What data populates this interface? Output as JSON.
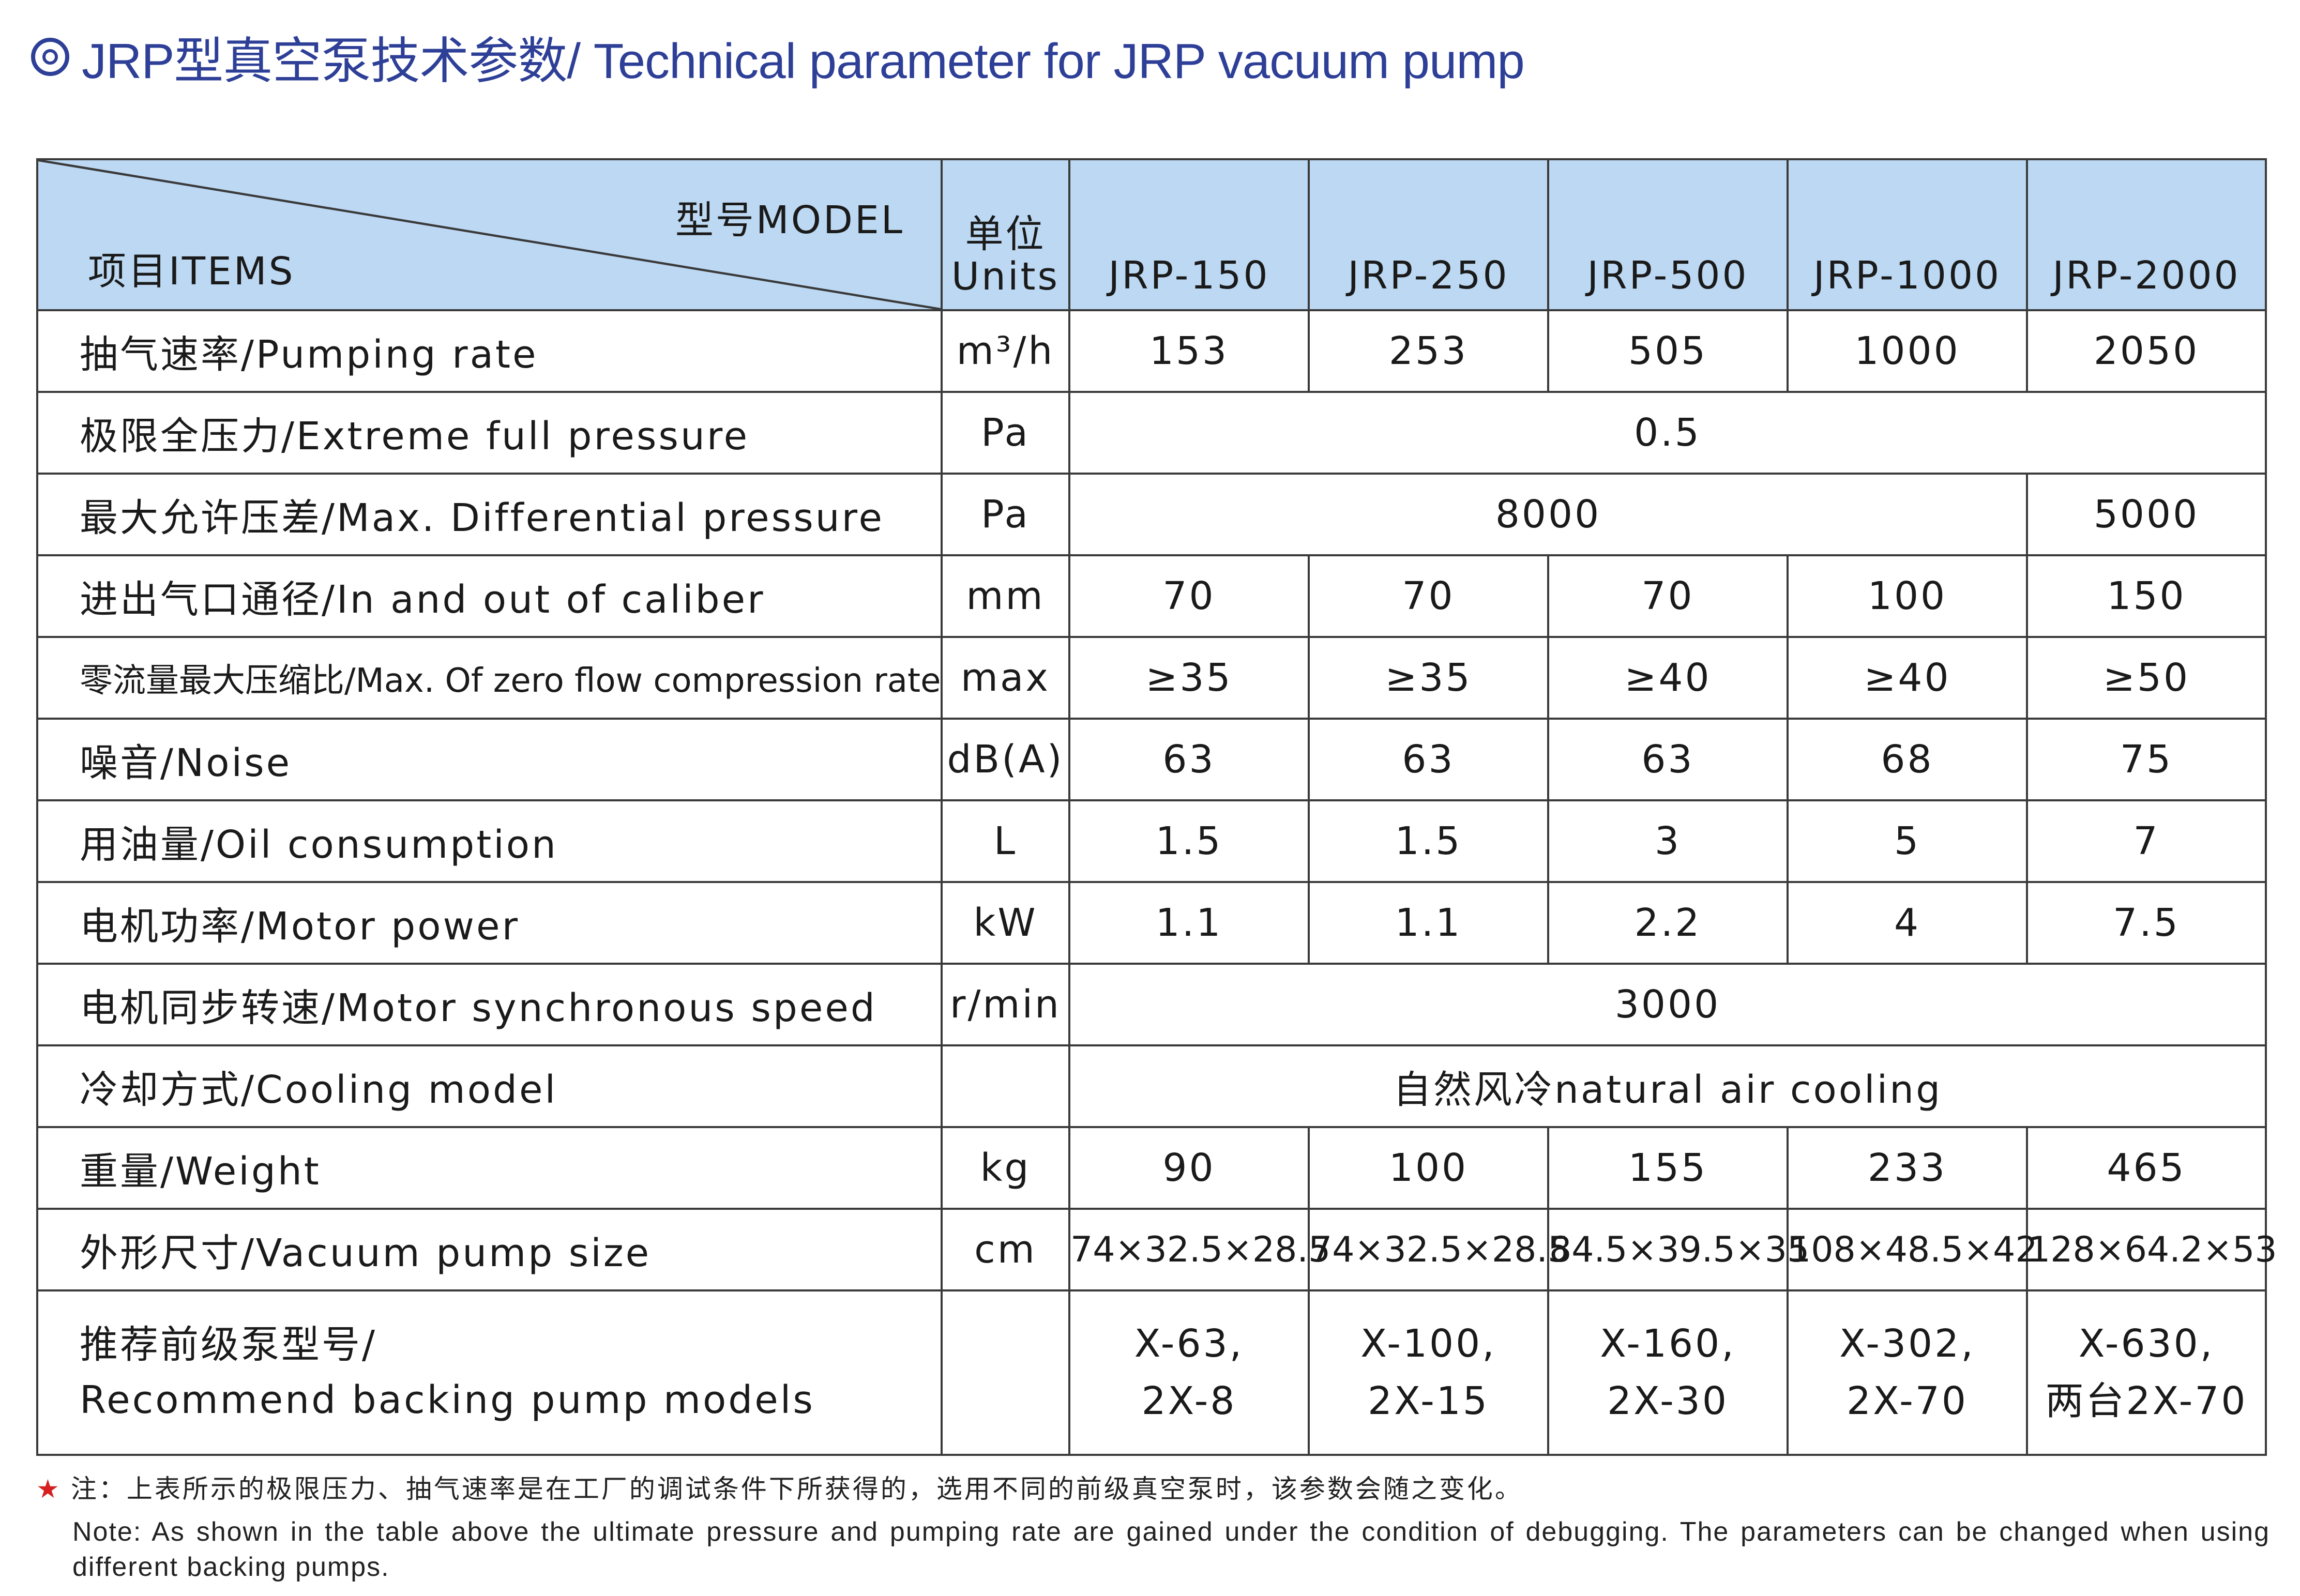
{
  "title": "JRP型真空泵技术参数/ Technical parameter for JRP vacuum pump",
  "header": {
    "model_label": "型号MODEL",
    "items_label": "项目ITEMS",
    "units_line1": "单位",
    "units_line2": "Units",
    "models": [
      "JRP-150",
      "JRP-250",
      "JRP-500",
      "JRP-1000",
      "JRP-2000"
    ]
  },
  "rows": {
    "pumping_rate": {
      "item": "抽气速率/Pumping rate",
      "unit": "m³/h",
      "values": [
        "153",
        "253",
        "505",
        "1000",
        "2050"
      ]
    },
    "extreme_pressure": {
      "item": "极限全压力/Extreme full pressure",
      "unit": "Pa",
      "value": "0.5"
    },
    "max_diff": {
      "item": "最大允许压差/Max. Differential pressure",
      "unit": "Pa",
      "value_1_4": "8000",
      "value_5": "5000"
    },
    "caliber": {
      "item": "进出气口通径/In and out of caliber",
      "unit": "mm",
      "values": [
        "70",
        "70",
        "70",
        "100",
        "150"
      ]
    },
    "compression": {
      "item": "零流量最大压缩比/Max. Of zero flow compression rate",
      "unit": "max",
      "values": [
        "≥35",
        "≥35",
        "≥40",
        "≥40",
        "≥50"
      ]
    },
    "noise": {
      "item": "噪音/Noise",
      "unit": "dB(A)",
      "values": [
        "63",
        "63",
        "63",
        "68",
        "75"
      ]
    },
    "oil": {
      "item": "用油量/Oil consumption",
      "unit": "L",
      "values": [
        "1.5",
        "1.5",
        "3",
        "5",
        "7"
      ]
    },
    "motor_power": {
      "item": "电机功率/Motor power",
      "unit": "kW",
      "values": [
        "1.1",
        "1.1",
        "2.2",
        "4",
        "7.5"
      ]
    },
    "motor_speed": {
      "item": "电机同步转速/Motor synchronous speed",
      "unit": "r/min",
      "value": "3000"
    },
    "cooling": {
      "item": "冷却方式/Cooling model",
      "unit": "",
      "value": "自然风冷natural air cooling"
    },
    "weight": {
      "item": "重量/Weight",
      "unit": "kg",
      "values": [
        "90",
        "100",
        "155",
        "233",
        "465"
      ]
    },
    "size": {
      "item": "外形尺寸/Vacuum pump size",
      "unit": "cm",
      "values": [
        "74×32.5×28.5",
        "74×32.5×28.5",
        "84.5×39.5×35",
        "108×48.5×42",
        "128×64.2×53"
      ]
    },
    "backing": {
      "item_line1": "推荐前级泵型号/",
      "item_line2": "Recommend backing pump models",
      "values": [
        {
          "l1": "X-63,",
          "l2": "2X-8"
        },
        {
          "l1": "X-100,",
          "l2": "2X-15"
        },
        {
          "l1": "X-160,",
          "l2": "2X-30"
        },
        {
          "l1": "X-302,",
          "l2": "2X-70"
        },
        {
          "l1": "X-630,",
          "l2": "两台2X-70"
        }
      ]
    }
  },
  "notes": {
    "cn": "注：上表所示的极限压力、抽气速率是在工厂的调试条件下所获得的，选用不同的前级真空泵时，该参数会随之变化。",
    "en": "Note: As shown in the table above the ultimate pressure and pumping rate are gained under the condition of debugging. The parameters can be changed when using different backing pumps."
  },
  "colors": {
    "title": "#2e3f97",
    "header_bg": "#bcd8f2",
    "star": "#d62020"
  }
}
